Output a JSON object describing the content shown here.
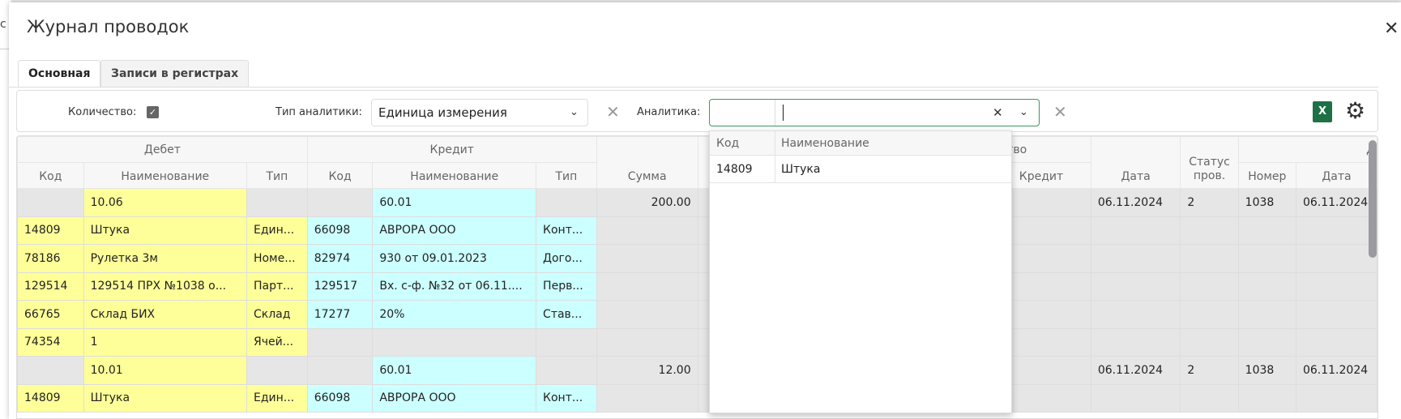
{
  "background_page": {
    "fragment": "c"
  },
  "dialog": {
    "title": "Журнал проводок",
    "close_icon": "close-icon"
  },
  "tabs": [
    {
      "label": "Основная",
      "active": true
    },
    {
      "label": "Записи в регистрах",
      "active": false
    }
  ],
  "filters": {
    "quantity_label": "Количество:",
    "quantity_checked": true,
    "analytics_type_label": "Тип аналитики:",
    "analytics_type_value": "Единица измерения",
    "analytics_label": "Аналитика:",
    "analytics_code": "",
    "analytics_value": "",
    "excel_label": "X",
    "accent": "#3c9a5f"
  },
  "table": {
    "group_headers": {
      "debit": "Дебет",
      "credit": "Кредит",
      "quantity": "Количество"
    },
    "columns": {
      "code": "Код",
      "name": "Наименование",
      "type": "Тип",
      "sum": "Сумма",
      "qty_credit": "Кредит",
      "date": "Дата",
      "status": "Статус пров.",
      "doc_number": "Номер",
      "doc_date": "Дата",
      "doc_group": "Д"
    },
    "rows": [
      {
        "kind": "entry",
        "d_name": "10.06",
        "c_name": "60.01",
        "sum": "200.00",
        "date": "06.11.2024",
        "status": "2",
        "number": "1038",
        "doc_date": "06.11.2024"
      },
      {
        "kind": "detail",
        "d_code": "14809",
        "d_name": "Штука",
        "d_type": "Един...",
        "c_code": "66098",
        "c_name": "АВРОРА ООО",
        "c_type": "Конт..."
      },
      {
        "kind": "detail",
        "d_code": "78186",
        "d_name": "Рулетка 3м",
        "d_type": "Номе...",
        "c_code": "82974",
        "c_name": "930 от 09.01.2023",
        "c_type": "Дого..."
      },
      {
        "kind": "detail",
        "d_code": "129514",
        "d_name": "129514 ПРХ №1038 о...",
        "d_type": "Парт...",
        "c_code": "129517",
        "c_name": "Вх. с-ф. №32 от 06.11....",
        "c_type": "Перв..."
      },
      {
        "kind": "detail",
        "d_code": "66765",
        "d_name": "Склад БИХ",
        "d_type": "Склад",
        "c_code": "17277",
        "c_name": "20%",
        "c_type": "Став..."
      },
      {
        "kind": "detail_debit_only",
        "d_code": "74354",
        "d_name": "1",
        "d_type": "Ячей..."
      },
      {
        "kind": "entry",
        "d_name": "10.01",
        "c_name": "60.01",
        "sum": "12.00",
        "date": "06.11.2024",
        "status": "2",
        "number": "1038",
        "doc_date": "06.11.2024"
      },
      {
        "kind": "detail",
        "d_code": "14809",
        "d_name": "Штука",
        "d_type": "Един...",
        "c_code": "66098",
        "c_name": "АВРОРА ООО",
        "c_type": "Конт..."
      }
    ],
    "colors": {
      "debit": "#ffff99",
      "credit": "#ccffff",
      "neutral": "#e6e6e6"
    }
  },
  "dropdown": {
    "headers": {
      "code": "Код",
      "name": "Наименование"
    },
    "items": [
      {
        "code": "14809",
        "name": "Штука"
      }
    ]
  }
}
